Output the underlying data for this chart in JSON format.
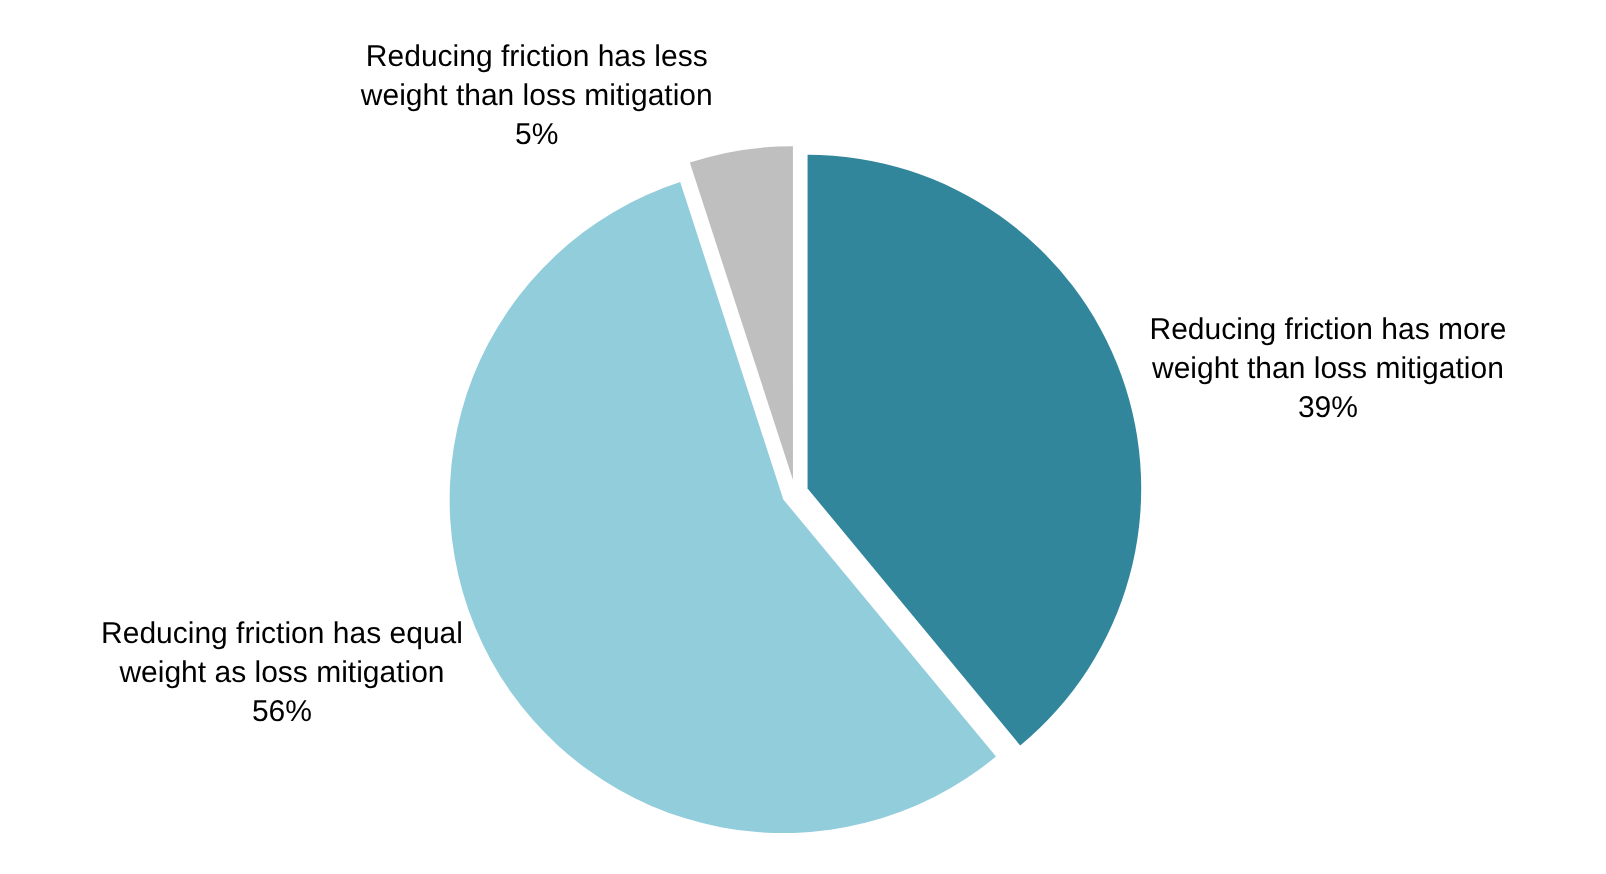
{
  "chart_data": {
    "type": "pie",
    "categories": [
      "Reducing friction has more weight than loss mitigation",
      "Reducing friction has equal weight as loss mitigation",
      "Reducing friction has less weight than loss mitigation"
    ],
    "values": [
      39,
      56,
      5
    ],
    "colors": [
      "#31869b",
      "#92cddc",
      "#bfbfbf"
    ],
    "value_labels": [
      "39%",
      "56%",
      "5%"
    ],
    "legend": false
  }
}
